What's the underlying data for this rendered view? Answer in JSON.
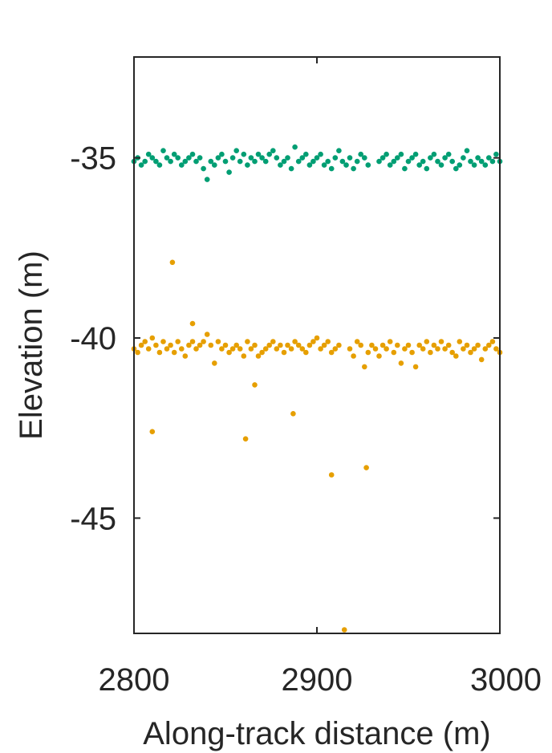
{
  "chart_data": {
    "type": "scatter",
    "title": "",
    "xlabel": "Along-track distance (m)",
    "ylabel": "Elevation (m)",
    "xlim": [
      2800,
      3000
    ],
    "ylim": [
      -48.2,
      -32.2
    ],
    "xticks": [
      2800,
      2900,
      3000
    ],
    "xtick_labels": [
      "2800",
      "2900",
      "3000"
    ],
    "yticks": [
      -35,
      -40,
      -45
    ],
    "ytick_labels": [
      "-35",
      "-40",
      "-45"
    ],
    "grid": false,
    "legend": "none",
    "series": [
      {
        "color": "#009E73",
        "x": [
          2800,
          2802,
          2804,
          2806,
          2808,
          2810,
          2812,
          2814,
          2816,
          2818,
          2820,
          2822,
          2824,
          2826,
          2828,
          2830,
          2832,
          2834,
          2836,
          2838,
          2840,
          2842,
          2844,
          2846,
          2848,
          2850,
          2852,
          2854,
          2856,
          2858,
          2860,
          2862,
          2864,
          2866,
          2868,
          2870,
          2872,
          2874,
          2876,
          2878,
          2880,
          2882,
          2884,
          2886,
          2888,
          2890,
          2892,
          2894,
          2896,
          2898,
          2900,
          2902,
          2904,
          2906,
          2908,
          2910,
          2912,
          2914,
          2916,
          2918,
          2920,
          2922,
          2924,
          2926,
          2928,
          2934,
          2936,
          2938,
          2940,
          2942,
          2944,
          2946,
          2948,
          2950,
          2952,
          2954,
          2956,
          2958,
          2960,
          2962,
          2964,
          2966,
          2968,
          2970,
          2972,
          2974,
          2976,
          2978,
          2980,
          2982,
          2984,
          2986,
          2988,
          2990,
          2992,
          2994,
          2996,
          2998,
          3000
        ],
        "y": [
          -35.1,
          -35.0,
          -35.2,
          -35.1,
          -34.9,
          -35.0,
          -35.1,
          -35.2,
          -34.8,
          -35.0,
          -35.1,
          -34.9,
          -35.0,
          -35.2,
          -35.1,
          -35.0,
          -34.9,
          -35.1,
          -35.0,
          -35.3,
          -35.6,
          -35.1,
          -35.2,
          -35.0,
          -34.9,
          -35.1,
          -35.4,
          -35.0,
          -34.8,
          -35.1,
          -34.9,
          -35.2,
          -35.0,
          -35.1,
          -34.9,
          -35.0,
          -35.1,
          -34.9,
          -34.8,
          -35.0,
          -35.2,
          -35.1,
          -35.0,
          -35.3,
          -34.7,
          -35.1,
          -35.0,
          -34.9,
          -35.2,
          -35.1,
          -35.0,
          -34.9,
          -35.2,
          -35.1,
          -35.3,
          -35.0,
          -34.8,
          -35.1,
          -35.2,
          -35.0,
          -35.3,
          -35.1,
          -34.9,
          -35.0,
          -35.2,
          -35.1,
          -35.0,
          -34.9,
          -35.2,
          -35.1,
          -35.0,
          -34.9,
          -35.3,
          -35.1,
          -35.0,
          -34.9,
          -35.2,
          -35.1,
          -35.3,
          -35.0,
          -34.9,
          -35.1,
          -35.2,
          -35.0,
          -34.9,
          -35.1,
          -35.3,
          -35.2,
          -35.0,
          -34.8,
          -35.1,
          -35.2,
          -35.0,
          -35.1,
          -35.2,
          -35.0,
          -35.1,
          -34.9,
          -35.1
        ]
      },
      {
        "color": "#E69F00",
        "x": [
          2800,
          2802,
          2804,
          2806,
          2808,
          2810,
          2812,
          2814,
          2816,
          2818,
          2820,
          2822,
          2824,
          2826,
          2828,
          2830,
          2832,
          2834,
          2836,
          2838,
          2840,
          2842,
          2844,
          2846,
          2848,
          2850,
          2852,
          2854,
          2856,
          2858,
          2860,
          2862,
          2864,
          2866,
          2868,
          2870,
          2872,
          2874,
          2876,
          2878,
          2880,
          2882,
          2884,
          2886,
          2888,
          2890,
          2892,
          2894,
          2896,
          2898,
          2900,
          2902,
          2904,
          2906,
          2908,
          2910,
          2912,
          2918,
          2920,
          2922,
          2924,
          2926,
          2928,
          2930,
          2932,
          2934,
          2936,
          2938,
          2940,
          2942,
          2944,
          2946,
          2948,
          2950,
          2952,
          2954,
          2956,
          2958,
          2960,
          2962,
          2964,
          2966,
          2968,
          2970,
          2972,
          2974,
          2976,
          2978,
          2980,
          2982,
          2984,
          2986,
          2988,
          2990,
          2992,
          2994,
          2996,
          2998,
          3000,
          2810,
          2821,
          2832,
          2861,
          2866,
          2887,
          2908,
          2915,
          2927
        ],
        "y": [
          -40.3,
          -40.4,
          -40.2,
          -40.1,
          -40.3,
          -40.0,
          -40.2,
          -40.4,
          -40.1,
          -40.3,
          -40.2,
          -40.4,
          -40.1,
          -40.3,
          -40.5,
          -40.2,
          -40.1,
          -40.3,
          -40.2,
          -40.1,
          -39.9,
          -40.2,
          -40.7,
          -40.1,
          -40.3,
          -40.2,
          -40.4,
          -40.3,
          -40.2,
          -40.3,
          -40.5,
          -40.1,
          -40.3,
          -40.2,
          -40.5,
          -40.4,
          -40.3,
          -40.2,
          -40.1,
          -40.3,
          -40.2,
          -40.4,
          -40.2,
          -40.3,
          -40.1,
          -40.2,
          -40.3,
          -40.4,
          -40.2,
          -40.1,
          -40.0,
          -40.3,
          -40.2,
          -40.1,
          -40.4,
          -40.3,
          -40.2,
          -40.3,
          -40.5,
          -40.1,
          -40.2,
          -40.8,
          -40.4,
          -40.2,
          -40.3,
          -40.5,
          -40.2,
          -40.3,
          -40.1,
          -40.4,
          -40.2,
          -40.7,
          -40.3,
          -40.2,
          -40.4,
          -40.8,
          -40.2,
          -40.3,
          -40.1,
          -40.4,
          -40.2,
          -40.3,
          -40.1,
          -40.3,
          -40.2,
          -40.4,
          -40.5,
          -40.1,
          -40.3,
          -40.2,
          -40.4,
          -40.3,
          -40.2,
          -40.6,
          -40.3,
          -40.2,
          -40.1,
          -40.3,
          -40.4,
          -42.6,
          -37.9,
          -39.6,
          -42.8,
          -41.3,
          -42.1,
          -43.8,
          -48.1,
          -43.6
        ]
      }
    ]
  }
}
